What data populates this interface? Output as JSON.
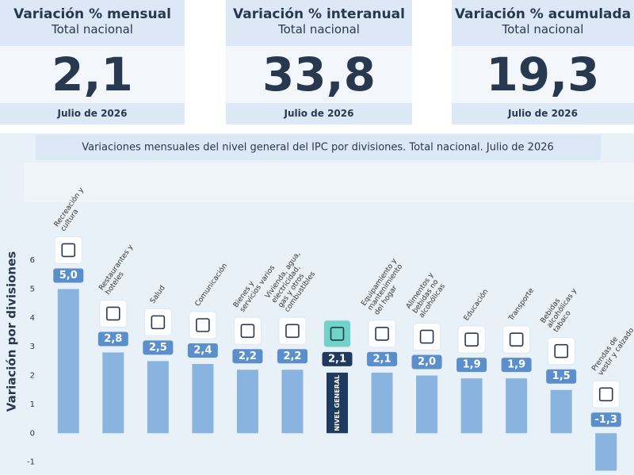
{
  "cards": [
    {
      "title": "Variación % mensual",
      "subtitle": "Total nacional",
      "value": "2,1",
      "date": "Julio de 2026"
    },
    {
      "title": "Variación % interanual",
      "subtitle": "Total nacional",
      "value": "33,8",
      "date": "Julio de 2026"
    },
    {
      "title": "Variación % acumulada",
      "subtitle": "Total nacional",
      "value": "19,3",
      "date": "Julio de 2026"
    }
  ],
  "chart_data": {
    "type": "bar",
    "title": "Variaciones mensuales del nivel general del IPC por divisiones. Total nacional. Julio de 2026",
    "y_label": "Variación por divisiones",
    "categories": [
      "Recreación y cultura",
      "Restaurantes y hoteles",
      "Salud",
      "Comunicación",
      "Bienes y servicios varios",
      "Vivienda, agua, electricidad, gas y otros combustibles",
      "NIVEL GENERAL",
      "Equipamiento y mantenimiento del hogar",
      "Alimentos y bebidas no alcohólicas",
      "Educación",
      "Transporte",
      "Bebidas alcohólicas y tabaco",
      "Prendas de vestir y calzado"
    ],
    "values": [
      5.0,
      2.8,
      2.5,
      2.4,
      2.2,
      2.2,
      2.1,
      2.1,
      2.0,
      1.9,
      1.9,
      1.5,
      -1.3
    ],
    "value_labels": [
      "5,0",
      "2,8",
      "2,5",
      "2,4",
      "2,2",
      "2,2",
      "2,1",
      "2,1",
      "2,0",
      "1,9",
      "1,9",
      "1,5",
      "-1,3"
    ],
    "colors": [
      "#8ab4e0",
      "#8ab4e0",
      "#8ab4e0",
      "#8ab4e0",
      "#8ab4e0",
      "#8ab4e0",
      "#1e3a5f",
      "#8ab4e0",
      "#8ab4e0",
      "#8ab4e0",
      "#8ab4e0",
      "#8ab4e0",
      "#8ab4e0"
    ],
    "ylim": [
      -1.45,
      9
    ],
    "yticks": [
      -1,
      0,
      1,
      2,
      3,
      4,
      5,
      6
    ],
    "grid": false
  }
}
